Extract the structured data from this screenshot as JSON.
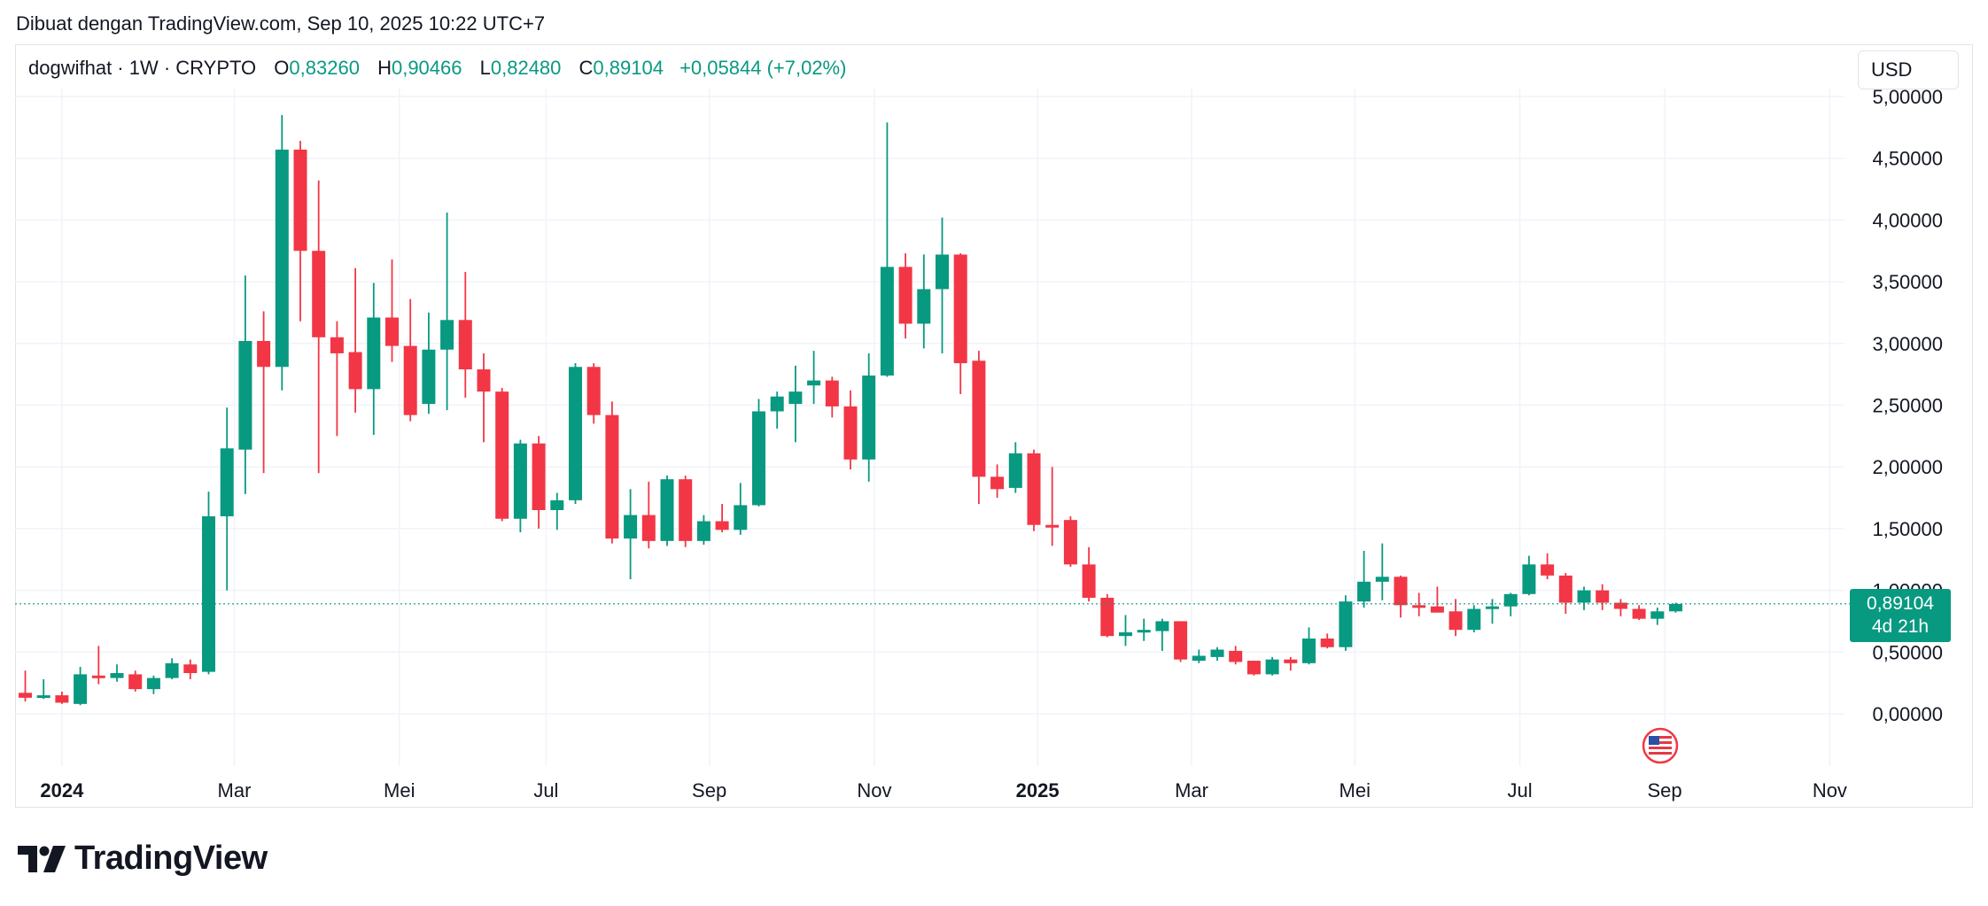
{
  "caption": "Dibuat dengan TradingView.com, Sep 10, 2025 10:22 UTC+7",
  "legend": {
    "symbol": "dogwifhat · 1W · CRYPTO",
    "o_label": "O",
    "o_value": "0,83260",
    "h_label": "H",
    "h_value": "0,90466",
    "l_label": "L",
    "l_value": "0,82480",
    "c_label": "C",
    "c_value": "0,89104",
    "change": "+0,05844 (+7,02%)"
  },
  "currency_button": "USD",
  "price_tag": {
    "price": "0,89104",
    "countdown": "4d 21h"
  },
  "brand": "TradingView",
  "colors": {
    "up": "#089981",
    "down": "#F23645",
    "grid": "#F0F3FA",
    "text": "#131722"
  },
  "icons": [
    "tradingview-logo-icon",
    "us-flag-event-icon"
  ],
  "chart_data": {
    "type": "candlestick",
    "interval": "1W",
    "ylim": [
      -0.5,
      5.1
    ],
    "y_ticks": [
      {
        "value": 0,
        "label": "0,00000"
      },
      {
        "value": 0.5,
        "label": "0,50000"
      },
      {
        "value": 1.0,
        "label": "1,00000"
      },
      {
        "value": 1.5,
        "label": "1,50000"
      },
      {
        "value": 2.0,
        "label": "2,00000"
      },
      {
        "value": 2.5,
        "label": "2,50000"
      },
      {
        "value": 3.0,
        "label": "3,00000"
      },
      {
        "value": 3.5,
        "label": "3,50000"
      },
      {
        "value": 4.0,
        "label": "4,00000"
      },
      {
        "value": 4.5,
        "label": "4,50000"
      },
      {
        "value": 5.0,
        "label": "5,00000"
      }
    ],
    "x_ticks": [
      {
        "label": "2024",
        "bold": true,
        "index": 2
      },
      {
        "label": "Mar",
        "bold": false,
        "index": 11.4
      },
      {
        "label": "Mei",
        "bold": false,
        "index": 20.4
      },
      {
        "label": "Jul",
        "bold": false,
        "index": 28.4
      },
      {
        "label": "Sep",
        "bold": false,
        "index": 37.3
      },
      {
        "label": "Nov",
        "bold": false,
        "index": 46.3
      },
      {
        "label": "2025",
        "bold": true,
        "index": 55.2
      },
      {
        "label": "Mar",
        "bold": false,
        "index": 63.6
      },
      {
        "label": "Mei",
        "bold": false,
        "index": 72.5
      },
      {
        "label": "Jul",
        "bold": false,
        "index": 81.5
      },
      {
        "label": "Sep",
        "bold": false,
        "index": 89.4
      },
      {
        "label": "Nov",
        "bold": false,
        "index": 98.4
      }
    ],
    "last_price": 0.89104,
    "candles": [
      {
        "o": 0.17,
        "h": 0.35,
        "l": 0.1,
        "c": 0.13
      },
      {
        "o": 0.14,
        "h": 0.28,
        "l": 0.12,
        "c": 0.15
      },
      {
        "o": 0.15,
        "h": 0.18,
        "l": 0.08,
        "c": 0.09
      },
      {
        "o": 0.08,
        "h": 0.38,
        "l": 0.07,
        "c": 0.32
      },
      {
        "o": 0.31,
        "h": 0.55,
        "l": 0.24,
        "c": 0.29
      },
      {
        "o": 0.29,
        "h": 0.4,
        "l": 0.26,
        "c": 0.33
      },
      {
        "o": 0.32,
        "h": 0.35,
        "l": 0.18,
        "c": 0.2
      },
      {
        "o": 0.2,
        "h": 0.31,
        "l": 0.16,
        "c": 0.29
      },
      {
        "o": 0.29,
        "h": 0.45,
        "l": 0.28,
        "c": 0.41
      },
      {
        "o": 0.4,
        "h": 0.44,
        "l": 0.28,
        "c": 0.33
      },
      {
        "o": 0.34,
        "h": 1.8,
        "l": 0.32,
        "c": 1.6
      },
      {
        "o": 1.6,
        "h": 2.48,
        "l": 1.0,
        "c": 2.15
      },
      {
        "o": 2.14,
        "h": 3.55,
        "l": 1.78,
        "c": 3.02
      },
      {
        "o": 3.02,
        "h": 3.26,
        "l": 1.95,
        "c": 2.81
      },
      {
        "o": 2.81,
        "h": 4.85,
        "l": 2.62,
        "c": 4.57
      },
      {
        "o": 4.57,
        "h": 4.64,
        "l": 3.18,
        "c": 3.75
      },
      {
        "o": 3.75,
        "h": 4.32,
        "l": 1.95,
        "c": 3.05
      },
      {
        "o": 3.05,
        "h": 3.18,
        "l": 2.25,
        "c": 2.92
      },
      {
        "o": 2.93,
        "h": 3.61,
        "l": 2.44,
        "c": 2.63
      },
      {
        "o": 2.63,
        "h": 3.49,
        "l": 2.26,
        "c": 3.21
      },
      {
        "o": 3.21,
        "h": 3.68,
        "l": 2.85,
        "c": 2.98
      },
      {
        "o": 2.98,
        "h": 3.36,
        "l": 2.37,
        "c": 2.42
      },
      {
        "o": 2.51,
        "h": 3.25,
        "l": 2.43,
        "c": 2.95
      },
      {
        "o": 2.95,
        "h": 4.06,
        "l": 2.46,
        "c": 3.19
      },
      {
        "o": 3.19,
        "h": 3.58,
        "l": 2.56,
        "c": 2.79
      },
      {
        "o": 2.79,
        "h": 2.92,
        "l": 2.2,
        "c": 2.61
      },
      {
        "o": 2.61,
        "h": 2.64,
        "l": 1.56,
        "c": 1.58
      },
      {
        "o": 1.58,
        "h": 2.22,
        "l": 1.47,
        "c": 2.19
      },
      {
        "o": 2.19,
        "h": 2.25,
        "l": 1.5,
        "c": 1.65
      },
      {
        "o": 1.65,
        "h": 1.79,
        "l": 1.49,
        "c": 1.73
      },
      {
        "o": 1.73,
        "h": 2.84,
        "l": 1.7,
        "c": 2.81
      },
      {
        "o": 2.81,
        "h": 2.84,
        "l": 2.35,
        "c": 2.42
      },
      {
        "o": 2.42,
        "h": 2.53,
        "l": 1.38,
        "c": 1.42
      },
      {
        "o": 1.42,
        "h": 1.82,
        "l": 1.09,
        "c": 1.61
      },
      {
        "o": 1.61,
        "h": 1.88,
        "l": 1.34,
        "c": 1.4
      },
      {
        "o": 1.4,
        "h": 1.93,
        "l": 1.36,
        "c": 1.9
      },
      {
        "o": 1.9,
        "h": 1.93,
        "l": 1.35,
        "c": 1.4
      },
      {
        "o": 1.4,
        "h": 1.61,
        "l": 1.37,
        "c": 1.56
      },
      {
        "o": 1.56,
        "h": 1.7,
        "l": 1.47,
        "c": 1.49
      },
      {
        "o": 1.49,
        "h": 1.87,
        "l": 1.45,
        "c": 1.69
      },
      {
        "o": 1.69,
        "h": 2.55,
        "l": 1.68,
        "c": 2.45
      },
      {
        "o": 2.45,
        "h": 2.61,
        "l": 2.31,
        "c": 2.57
      },
      {
        "o": 2.51,
        "h": 2.82,
        "l": 2.2,
        "c": 2.61
      },
      {
        "o": 2.66,
        "h": 2.94,
        "l": 2.51,
        "c": 2.7
      },
      {
        "o": 2.7,
        "h": 2.73,
        "l": 2.4,
        "c": 2.49
      },
      {
        "o": 2.49,
        "h": 2.62,
        "l": 1.98,
        "c": 2.06
      },
      {
        "o": 2.06,
        "h": 2.92,
        "l": 1.88,
        "c": 2.74
      },
      {
        "o": 2.74,
        "h": 4.79,
        "l": 2.73,
        "c": 3.62
      },
      {
        "o": 3.62,
        "h": 3.73,
        "l": 3.04,
        "c": 3.16
      },
      {
        "o": 3.16,
        "h": 3.72,
        "l": 2.96,
        "c": 3.44
      },
      {
        "o": 3.44,
        "h": 4.02,
        "l": 2.92,
        "c": 3.72
      },
      {
        "o": 3.72,
        "h": 3.73,
        "l": 2.59,
        "c": 2.84
      },
      {
        "o": 2.86,
        "h": 2.94,
        "l": 1.7,
        "c": 1.92
      },
      {
        "o": 1.92,
        "h": 2.02,
        "l": 1.75,
        "c": 1.82
      },
      {
        "o": 1.83,
        "h": 2.2,
        "l": 1.79,
        "c": 2.11
      },
      {
        "o": 2.11,
        "h": 2.14,
        "l": 1.48,
        "c": 1.53
      },
      {
        "o": 1.53,
        "h": 2.0,
        "l": 1.36,
        "c": 1.52
      },
      {
        "o": 1.57,
        "h": 1.6,
        "l": 1.19,
        "c": 1.21
      },
      {
        "o": 1.21,
        "h": 1.35,
        "l": 0.91,
        "c": 0.94
      },
      {
        "o": 0.94,
        "h": 0.97,
        "l": 0.62,
        "c": 0.63
      },
      {
        "o": 0.63,
        "h": 0.8,
        "l": 0.55,
        "c": 0.66
      },
      {
        "o": 0.66,
        "h": 0.77,
        "l": 0.59,
        "c": 0.68
      },
      {
        "o": 0.67,
        "h": 0.77,
        "l": 0.51,
        "c": 0.75
      },
      {
        "o": 0.75,
        "h": 0.75,
        "l": 0.42,
        "c": 0.44
      },
      {
        "o": 0.43,
        "h": 0.52,
        "l": 0.41,
        "c": 0.47
      },
      {
        "o": 0.46,
        "h": 0.54,
        "l": 0.43,
        "c": 0.52
      },
      {
        "o": 0.51,
        "h": 0.55,
        "l": 0.4,
        "c": 0.42
      },
      {
        "o": 0.43,
        "h": 0.43,
        "l": 0.31,
        "c": 0.32
      },
      {
        "o": 0.32,
        "h": 0.46,
        "l": 0.31,
        "c": 0.44
      },
      {
        "o": 0.44,
        "h": 0.46,
        "l": 0.35,
        "c": 0.41
      },
      {
        "o": 0.41,
        "h": 0.7,
        "l": 0.4,
        "c": 0.61
      },
      {
        "o": 0.61,
        "h": 0.65,
        "l": 0.53,
        "c": 0.54
      },
      {
        "o": 0.54,
        "h": 0.96,
        "l": 0.51,
        "c": 0.91
      },
      {
        "o": 0.91,
        "h": 1.32,
        "l": 0.86,
        "c": 1.07
      },
      {
        "o": 1.07,
        "h": 1.38,
        "l": 0.92,
        "c": 1.11
      },
      {
        "o": 1.11,
        "h": 1.12,
        "l": 0.78,
        "c": 0.88
      },
      {
        "o": 0.88,
        "h": 0.98,
        "l": 0.79,
        "c": 0.87
      },
      {
        "o": 0.87,
        "h": 1.03,
        "l": 0.82,
        "c": 0.82
      },
      {
        "o": 0.83,
        "h": 0.93,
        "l": 0.63,
        "c": 0.68
      },
      {
        "o": 0.68,
        "h": 0.88,
        "l": 0.66,
        "c": 0.85
      },
      {
        "o": 0.85,
        "h": 0.93,
        "l": 0.73,
        "c": 0.87
      },
      {
        "o": 0.87,
        "h": 0.98,
        "l": 0.79,
        "c": 0.97
      },
      {
        "o": 0.97,
        "h": 1.28,
        "l": 0.96,
        "c": 1.21
      },
      {
        "o": 1.21,
        "h": 1.3,
        "l": 1.09,
        "c": 1.12
      },
      {
        "o": 1.12,
        "h": 1.14,
        "l": 0.81,
        "c": 0.9
      },
      {
        "o": 0.9,
        "h": 1.03,
        "l": 0.84,
        "c": 1.0
      },
      {
        "o": 1.0,
        "h": 1.05,
        "l": 0.84,
        "c": 0.9
      },
      {
        "o": 0.9,
        "h": 0.93,
        "l": 0.79,
        "c": 0.85
      },
      {
        "o": 0.85,
        "h": 0.88,
        "l": 0.76,
        "c": 0.77
      },
      {
        "o": 0.77,
        "h": 0.86,
        "l": 0.72,
        "c": 0.83
      },
      {
        "o": 0.83,
        "h": 0.9,
        "l": 0.82,
        "c": 0.89
      }
    ]
  }
}
